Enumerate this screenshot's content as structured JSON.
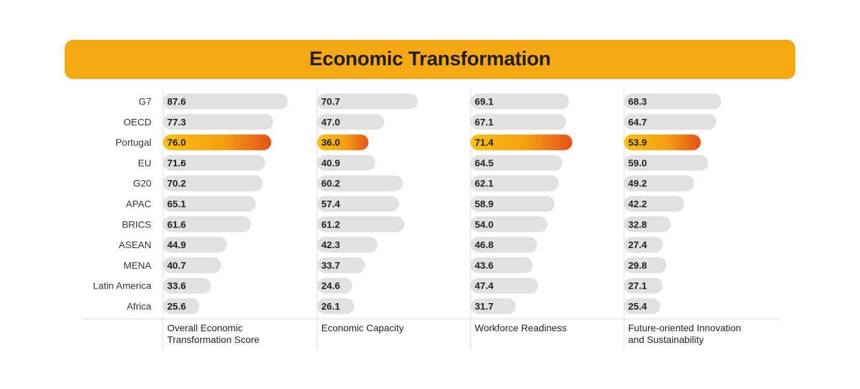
{
  "chart_data": {
    "type": "bar",
    "title": "Economic Transformation",
    "categories": [
      "G7",
      "OECD",
      "Portugal",
      "EU",
      "G20",
      "APAC",
      "BRICS",
      "ASEAN",
      "MENA",
      "Latin America",
      "Africa"
    ],
    "highlight": "Portugal",
    "series": [
      {
        "name": [
          "Overall Economic",
          "Transformation Score"
        ],
        "values": [
          87.6,
          77.3,
          76.0,
          71.6,
          70.2,
          65.1,
          61.6,
          44.9,
          40.7,
          33.6,
          25.6
        ]
      },
      {
        "name": [
          "Economic Capacity"
        ],
        "values": [
          70.7,
          47.0,
          36.0,
          40.9,
          60.2,
          57.4,
          61.2,
          42.3,
          33.7,
          24.6,
          26.1
        ]
      },
      {
        "name": [
          "Workforce Readiness"
        ],
        "values": [
          69.1,
          67.1,
          71.4,
          64.5,
          62.1,
          58.9,
          54.0,
          46.8,
          43.6,
          47.4,
          31.7
        ]
      },
      {
        "name": [
          "Future-oriented Innovation",
          "and  Sustainability"
        ],
        "values": [
          68.3,
          64.7,
          53.9,
          59.0,
          49.2,
          42.2,
          32.8,
          27.4,
          29.8,
          27.1,
          25.4
        ]
      }
    ],
    "colors": {
      "bar": "#e2e1e2",
      "highlight_start": "#f9c10c",
      "highlight_end": "#e4521a",
      "title_bg": "#f6a714",
      "grid": "#d9d9d9"
    }
  }
}
